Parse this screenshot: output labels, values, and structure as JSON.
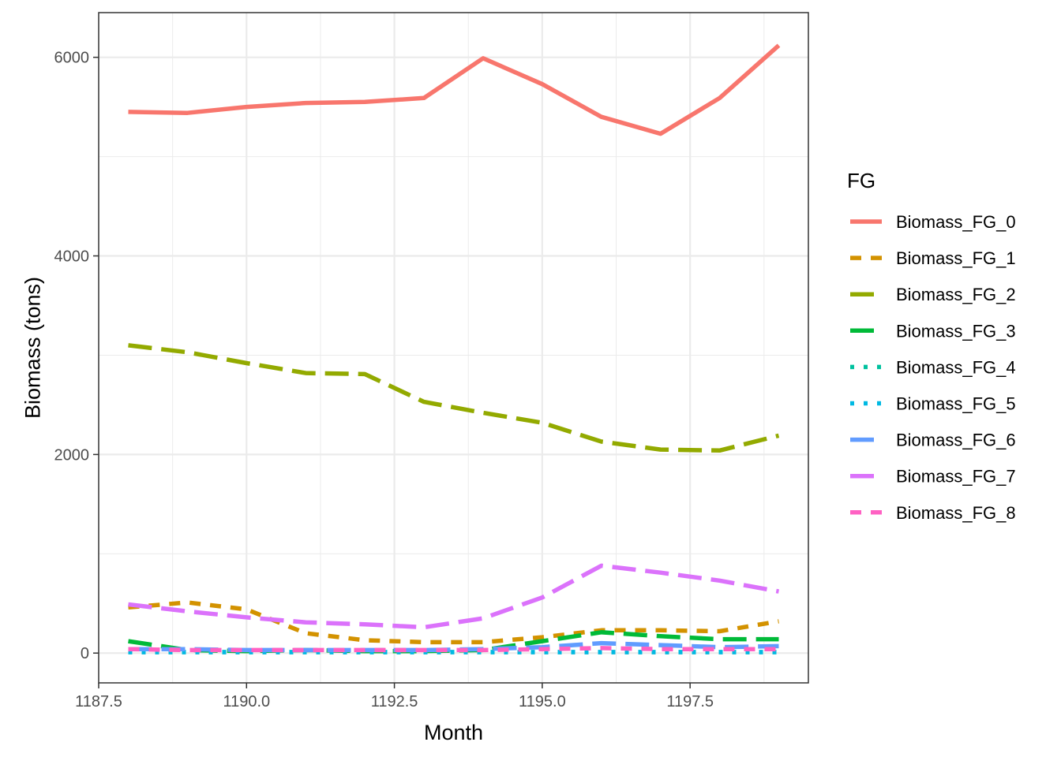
{
  "chart_data": {
    "type": "line",
    "xlabel": "Month",
    "ylabel": "Biomass (tons)",
    "xlim": [
      1187.5,
      1199.5
    ],
    "ylim": [
      -300,
      6450
    ],
    "x_ticks": [
      1187.5,
      1190.0,
      1192.5,
      1195.0,
      1197.5
    ],
    "x_tick_labels": [
      "1187.5",
      "1190.0",
      "1192.5",
      "1195.0",
      "1197.5"
    ],
    "y_ticks": [
      0,
      2000,
      4000,
      6000
    ],
    "y_tick_labels": [
      "0",
      "2000",
      "4000",
      "6000"
    ],
    "grid": true,
    "legend": {
      "title": "FG",
      "position": "right"
    },
    "x": [
      1188,
      1189,
      1190,
      1191,
      1192,
      1193,
      1194,
      1195,
      1196,
      1197,
      1198,
      1199
    ],
    "series": [
      {
        "name": "Biomass_FG_0",
        "color": "#F8766D",
        "dash": "solid",
        "values": [
          5450,
          5440,
          5500,
          5540,
          5550,
          5590,
          5990,
          5730,
          5400,
          5230,
          5590,
          6120
        ]
      },
      {
        "name": "Biomass_FG_1",
        "color": "#D39200",
        "dash": "dashed",
        "values": [
          460,
          510,
          440,
          200,
          130,
          110,
          110,
          160,
          230,
          230,
          220,
          320
        ]
      },
      {
        "name": "Biomass_FG_2",
        "color": "#93AA00",
        "dash": "longdash",
        "values": [
          3100,
          3030,
          2920,
          2820,
          2810,
          2530,
          2420,
          2320,
          2130,
          2050,
          2040,
          2190
        ]
      },
      {
        "name": "Biomass_FG_3",
        "color": "#00BA38",
        "dash": "longdash",
        "values": [
          120,
          30,
          20,
          30,
          20,
          20,
          30,
          120,
          210,
          170,
          140,
          140
        ]
      },
      {
        "name": "Biomass_FG_4",
        "color": "#00C19F",
        "dash": "dotted",
        "values": [
          10,
          10,
          10,
          10,
          10,
          10,
          10,
          10,
          10,
          10,
          10,
          10
        ]
      },
      {
        "name": "Biomass_FG_5",
        "color": "#00B9E3",
        "dash": "dotted",
        "values": [
          10,
          10,
          10,
          10,
          10,
          10,
          10,
          10,
          10,
          10,
          10,
          10
        ]
      },
      {
        "name": "Biomass_FG_6",
        "color": "#619CFF",
        "dash": "longdash",
        "values": [
          40,
          40,
          30,
          30,
          30,
          30,
          40,
          60,
          100,
          80,
          60,
          70
        ]
      },
      {
        "name": "Biomass_FG_7",
        "color": "#DB72FB",
        "dash": "longdash",
        "values": [
          490,
          420,
          360,
          310,
          290,
          260,
          350,
          560,
          880,
          810,
          730,
          620
        ]
      },
      {
        "name": "Biomass_FG_8",
        "color": "#FF61C3",
        "dash": "dashed",
        "values": [
          40,
          30,
          30,
          30,
          30,
          30,
          30,
          40,
          50,
          40,
          40,
          40
        ]
      }
    ]
  }
}
